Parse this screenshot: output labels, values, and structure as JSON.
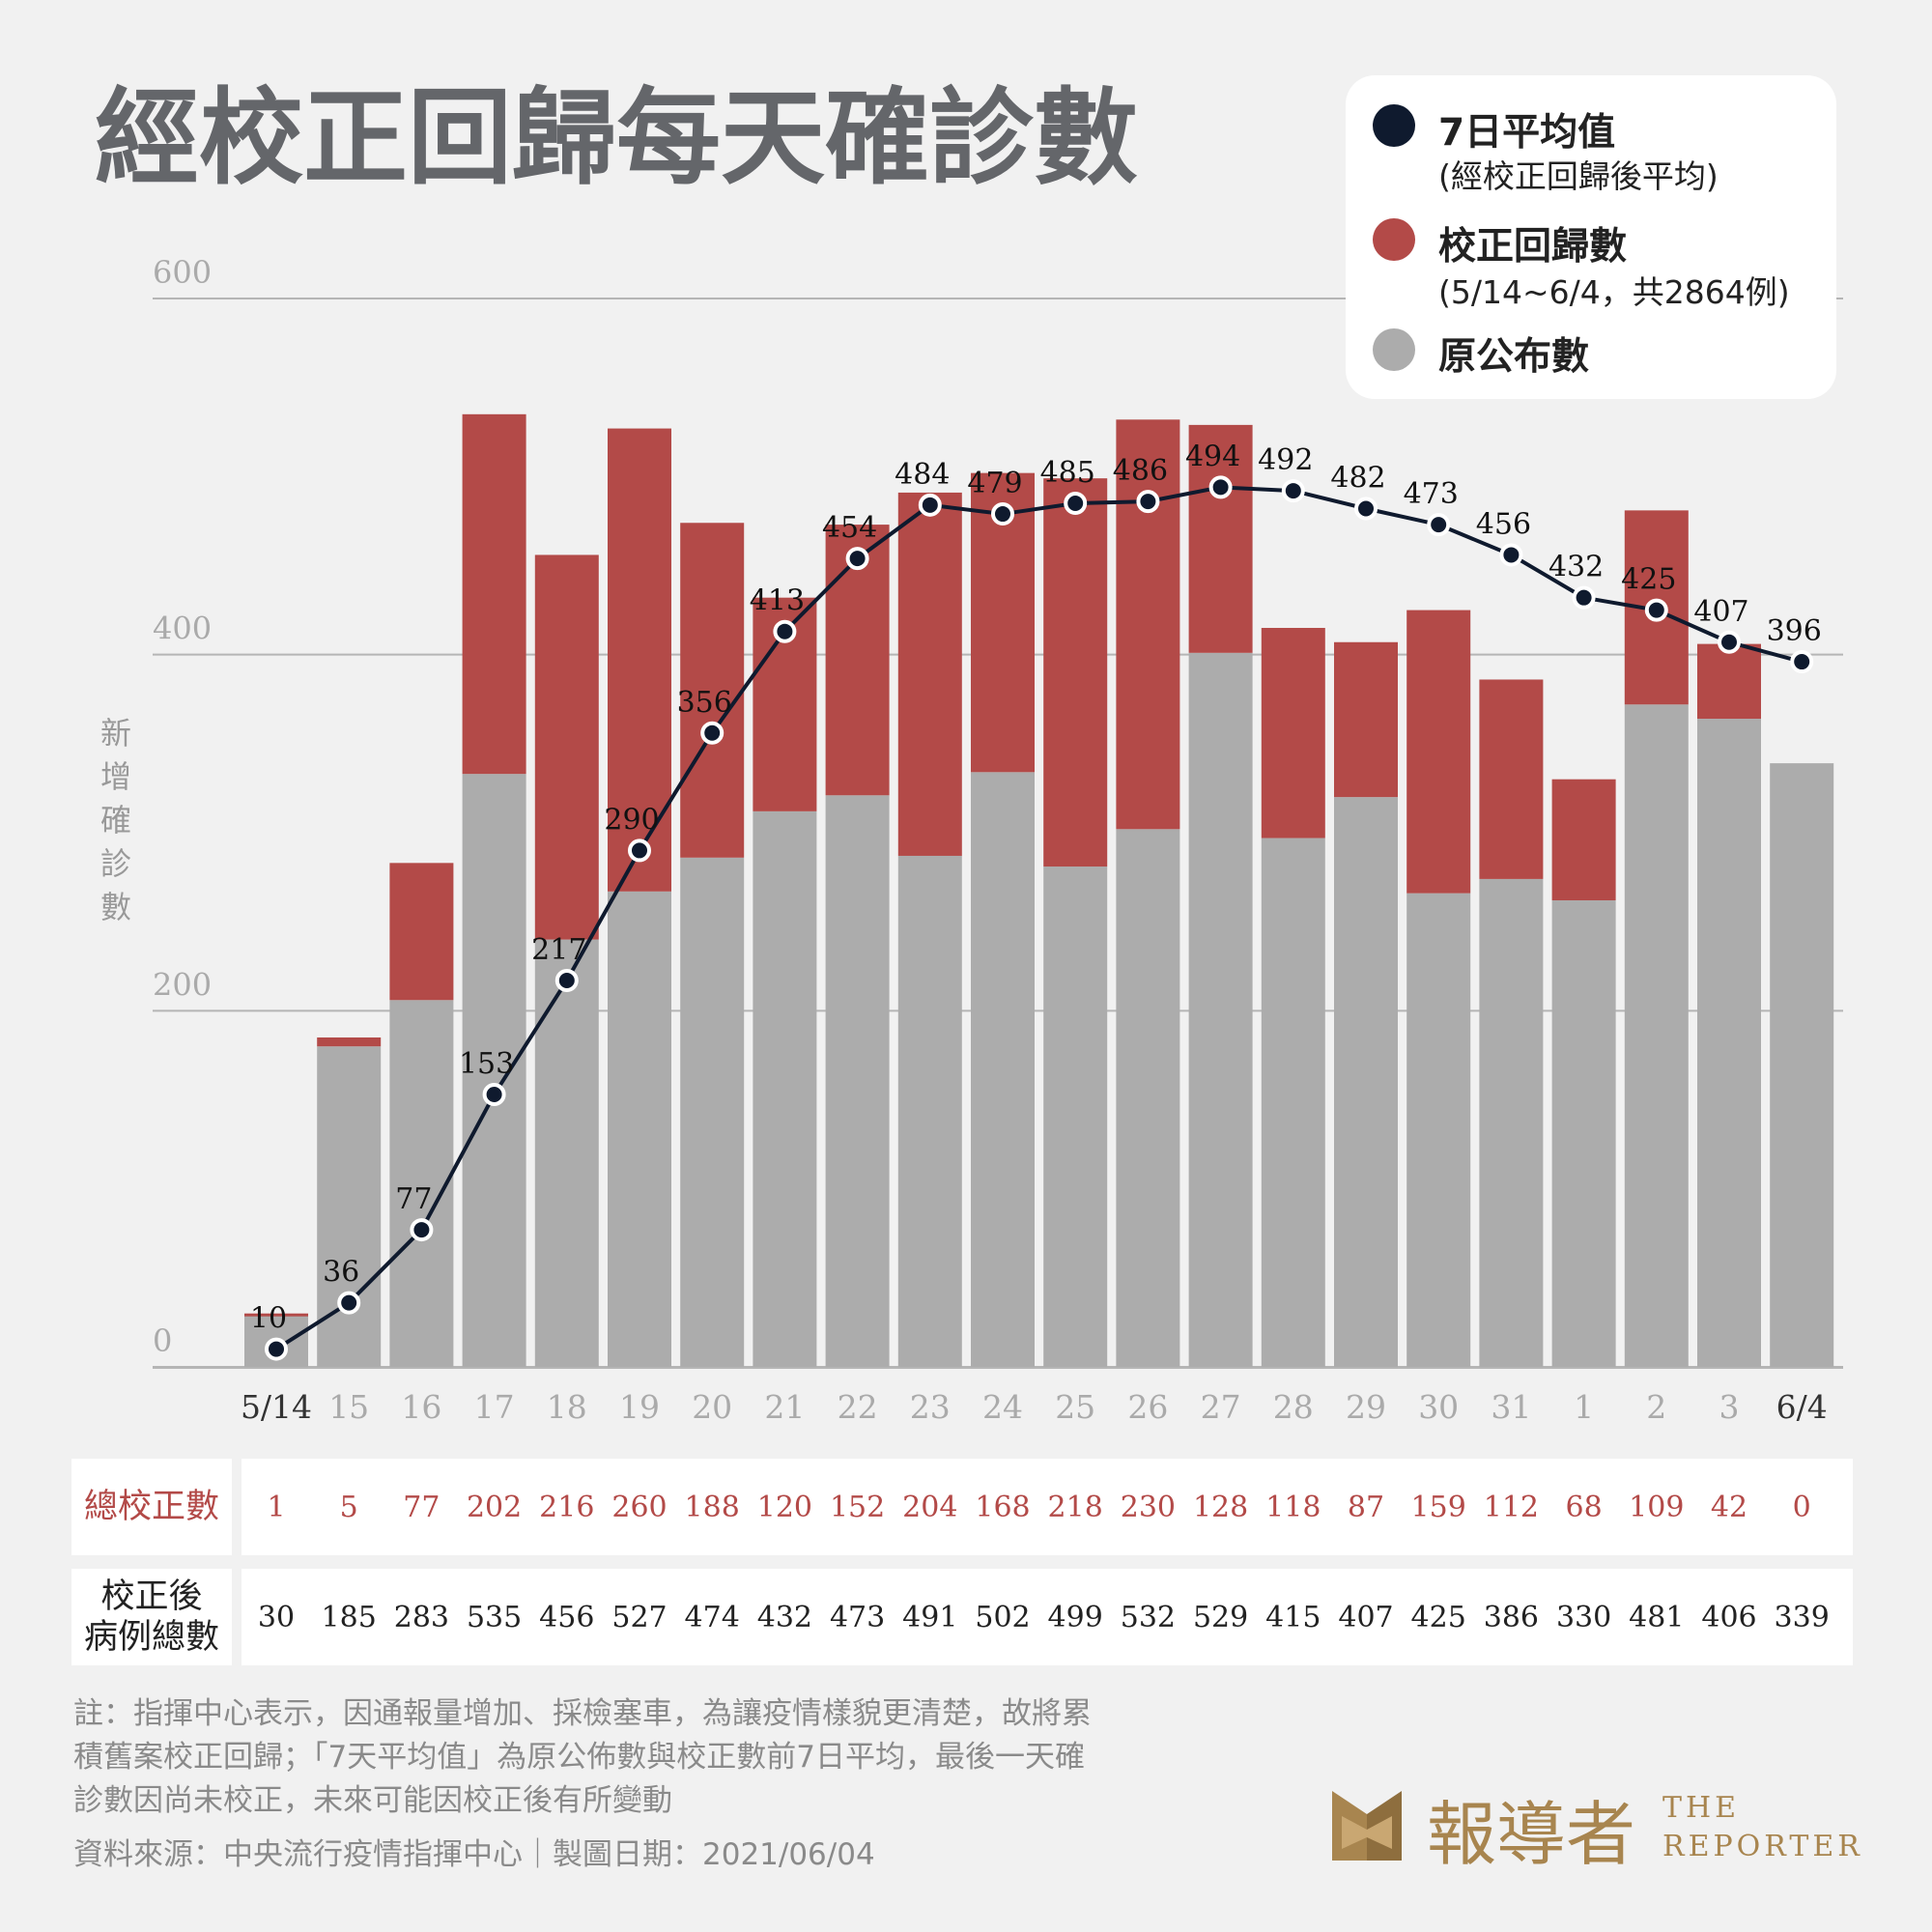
{
  "title": "經校正回歸每天確診數",
  "legend": {
    "avg_label": "7日平均值",
    "avg_sub": "(經校正回歸後平均)",
    "backlog_label": "校正回歸數",
    "backlog_sub": "(5/14~6/4，共2864例)",
    "original_label": "原公布數"
  },
  "colors": {
    "original": "#acacac",
    "backlog": "#b34a48",
    "avg": "#0f1a2e",
    "title": "#64666a",
    "gold": "#a8854f"
  },
  "table": {
    "backlog_head": "總校正數",
    "total_head_1": "校正後",
    "total_head_2": "病例總數",
    "backlog_values": [
      "1",
      "5",
      "77",
      "202",
      "216",
      "260",
      "188",
      "120",
      "152",
      "204",
      "168",
      "218",
      "230",
      "128",
      "118",
      "87",
      "159",
      "112",
      "68",
      "109",
      "42",
      "0"
    ],
    "total_values": [
      "30",
      "185",
      "283",
      "535",
      "456",
      "527",
      "474",
      "432",
      "473",
      "491",
      "502",
      "499",
      "532",
      "529",
      "415",
      "407",
      "425",
      "386",
      "330",
      "481",
      "406",
      "339"
    ]
  },
  "note_lines": [
    "註：指揮中心表示，因通報量增加、採檢塞車，為讓疫情樣貌更清楚，故將累",
    "積舊案校正回歸；「7天平均值」為原公佈數與校正數前7日平均，最後一天確",
    "診數因尚未校正，未來可能因校正後有所變動"
  ],
  "source": "資料來源：中央流行疫情指揮中心｜製圖日期：2021/06/04",
  "logo": {
    "cn": "報導者",
    "en1": "THE",
    "en2": "REPORTER"
  },
  "chart_data": {
    "type": "bar",
    "stacked": true,
    "ylabel": "新增確診數",
    "ylim": [
      0,
      600
    ],
    "yticks": [
      "0",
      "200",
      "400",
      "600"
    ],
    "categories": [
      "5/14",
      "15",
      "16",
      "17",
      "18",
      "19",
      "20",
      "21",
      "22",
      "23",
      "24",
      "25",
      "26",
      "27",
      "28",
      "29",
      "30",
      "31",
      "1",
      "2",
      "3",
      "6/4"
    ],
    "series": [
      {
        "name": "原公布數",
        "values": [
          29,
          180,
          206,
          333,
          240,
          267,
          286,
          312,
          321,
          287,
          334,
          281,
          302,
          401,
          297,
          320,
          266,
          274,
          262,
          372,
          364,
          339
        ]
      },
      {
        "name": "校正回歸數",
        "values": [
          1,
          5,
          77,
          202,
          216,
          260,
          188,
          120,
          152,
          204,
          168,
          218,
          230,
          128,
          118,
          87,
          159,
          112,
          68,
          109,
          42,
          0
        ]
      },
      {
        "name": "7日平均值",
        "type": "line",
        "values": [
          10,
          36,
          77,
          153,
          217,
          290,
          356,
          413,
          454,
          484,
          479,
          485,
          486,
          494,
          492,
          482,
          473,
          456,
          432,
          425,
          407,
          396
        ]
      }
    ]
  }
}
